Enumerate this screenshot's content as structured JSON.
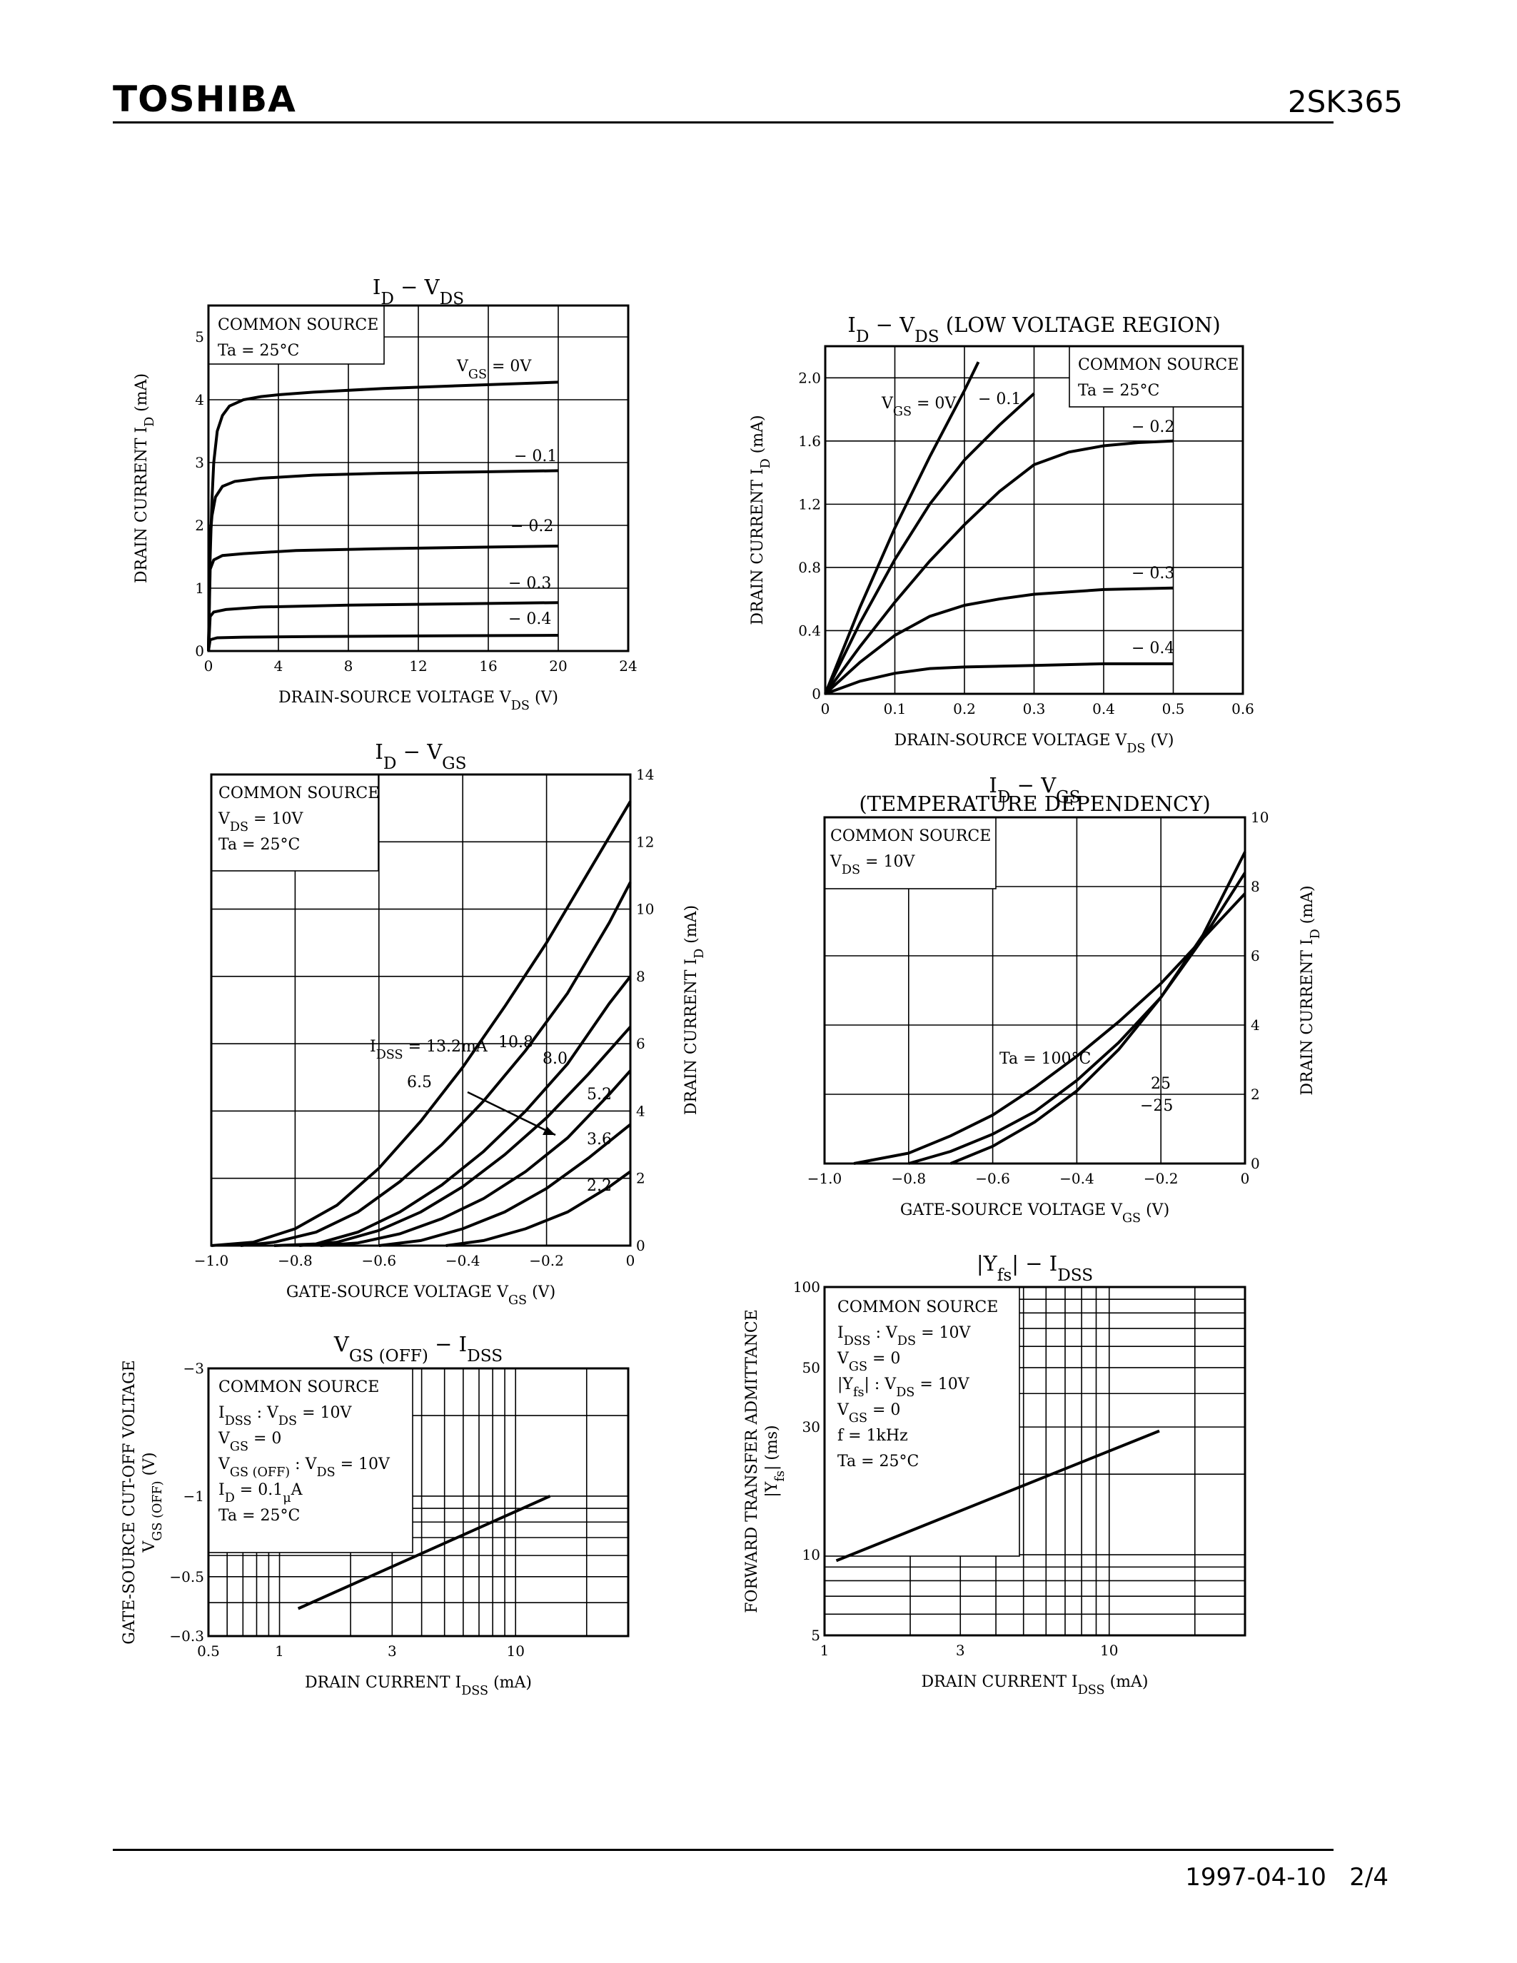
{
  "header": {
    "brand": "TOSHIBA",
    "part_number": "2SK365"
  },
  "footer": {
    "date": "1997-04-10",
    "page": "2/4"
  },
  "chart_data": [
    {
      "id": "id-vds",
      "type": "line",
      "title": [
        "I",
        "D",
        " − V",
        "DS"
      ],
      "xlabel": [
        "DRAIN-SOURCE VOLTAGE  V",
        "DS",
        "  (V)"
      ],
      "ylabel": [
        "DRAIN CURRENT  I",
        "D",
        "  (mA)"
      ],
      "xlim": [
        0,
        24
      ],
      "ylim": [
        0,
        5.5
      ],
      "xticks": [
        "0",
        "4",
        "8",
        "12",
        "16",
        "20",
        "24"
      ],
      "xtickvals": [
        0,
        4,
        8,
        12,
        16,
        20,
        24
      ],
      "yticks": [
        "0",
        "1",
        "2",
        "3",
        "4",
        "5"
      ],
      "ytickvals": [
        0,
        1,
        2,
        3,
        4,
        5
      ],
      "notes": [
        [
          "COMMON SOURCE"
        ],
        [
          "Ta = 25°C"
        ]
      ],
      "series": [
        {
          "name": "VGS=0V",
          "label": [
            "V",
            "GS",
            " = 0V"
          ],
          "x": [
            0,
            0.1,
            0.2,
            0.3,
            0.5,
            0.8,
            1.2,
            2,
            3,
            4,
            6,
            10,
            15,
            20
          ],
          "y": [
            0,
            1.5,
            2.4,
            3.0,
            3.5,
            3.75,
            3.9,
            4.0,
            4.05,
            4.08,
            4.12,
            4.18,
            4.23,
            4.28
          ]
        },
        {
          "name": "-0.1",
          "label": [
            "− 0.1"
          ],
          "x": [
            0,
            0.1,
            0.2,
            0.4,
            0.8,
            1.5,
            3,
            6,
            10,
            15,
            20
          ],
          "y": [
            0,
            1.8,
            2.15,
            2.45,
            2.62,
            2.7,
            2.75,
            2.8,
            2.83,
            2.85,
            2.87
          ]
        },
        {
          "name": "-0.2",
          "label": [
            "− 0.2"
          ],
          "x": [
            0,
            0.1,
            0.3,
            0.8,
            2,
            5,
            10,
            15,
            20
          ],
          "y": [
            0,
            1.3,
            1.45,
            1.52,
            1.55,
            1.6,
            1.63,
            1.65,
            1.67
          ]
        },
        {
          "name": "-0.3",
          "label": [
            "− 0.3"
          ],
          "x": [
            0,
            0.1,
            0.3,
            1,
            3,
            8,
            14,
            20
          ],
          "y": [
            0,
            0.55,
            0.62,
            0.66,
            0.7,
            0.73,
            0.75,
            0.77
          ]
        },
        {
          "name": "-0.4",
          "label": [
            "− 0.4"
          ],
          "x": [
            0,
            0.1,
            0.5,
            2,
            6,
            12,
            20
          ],
          "y": [
            0,
            0.18,
            0.21,
            0.22,
            0.23,
            0.24,
            0.25
          ]
        }
      ]
    },
    {
      "id": "id-vds-low",
      "type": "line",
      "title": [
        "I",
        "D",
        " − V",
        "DS",
        "   (LOW VOLTAGE REGION)"
      ],
      "xlabel": [
        "DRAIN-SOURCE VOLTAGE  V",
        "DS",
        "  (V)"
      ],
      "ylabel": [
        "DRAIN CURRENT  I",
        "D",
        "  (mA)"
      ],
      "xlim": [
        0,
        0.6
      ],
      "ylim": [
        0,
        2.2
      ],
      "xticks": [
        "0",
        "0.1",
        "0.2",
        "0.3",
        "0.4",
        "0.5",
        "0.6"
      ],
      "xtickvals": [
        0,
        0.1,
        0.2,
        0.3,
        0.4,
        0.5,
        0.6
      ],
      "yticks": [
        "0",
        "0.4",
        "0.8",
        "1.2",
        "1.6",
        "2.0"
      ],
      "ytickvals": [
        0,
        0.4,
        0.8,
        1.2,
        1.6,
        2.0
      ],
      "notes": [
        [
          "COMMON SOURCE"
        ],
        [
          "Ta = 25°C"
        ]
      ],
      "series": [
        {
          "name": "VGS=0V",
          "label": [
            "V",
            "GS",
            " = 0V"
          ],
          "x": [
            0,
            0.05,
            0.1,
            0.15,
            0.2,
            0.22
          ],
          "y": [
            0,
            0.55,
            1.05,
            1.5,
            1.92,
            2.1
          ]
        },
        {
          "name": "-0.1",
          "label": [
            "− 0.1"
          ],
          "x": [
            0,
            0.05,
            0.1,
            0.15,
            0.2,
            0.25,
            0.3
          ],
          "y": [
            0,
            0.45,
            0.85,
            1.2,
            1.48,
            1.7,
            1.9
          ]
        },
        {
          "name": "-0.2",
          "label": [
            "− 0.2"
          ],
          "x": [
            0,
            0.05,
            0.1,
            0.15,
            0.2,
            0.25,
            0.3,
            0.35,
            0.4,
            0.45,
            0.5
          ],
          "y": [
            0,
            0.3,
            0.58,
            0.84,
            1.07,
            1.28,
            1.45,
            1.53,
            1.57,
            1.59,
            1.6
          ]
        },
        {
          "name": "-0.3",
          "label": [
            "− 0.3"
          ],
          "x": [
            0,
            0.05,
            0.1,
            0.15,
            0.2,
            0.25,
            0.3,
            0.4,
            0.5
          ],
          "y": [
            0,
            0.2,
            0.37,
            0.49,
            0.56,
            0.6,
            0.63,
            0.66,
            0.67
          ]
        },
        {
          "name": "-0.4",
          "label": [
            "− 0.4"
          ],
          "x": [
            0,
            0.05,
            0.1,
            0.15,
            0.2,
            0.3,
            0.4,
            0.5
          ],
          "y": [
            0,
            0.08,
            0.13,
            0.16,
            0.17,
            0.18,
            0.19,
            0.19
          ]
        }
      ]
    },
    {
      "id": "id-vgs",
      "type": "line",
      "title": [
        "I",
        "D",
        " − V",
        "GS"
      ],
      "xlabel": [
        "GATE-SOURCE VOLTAGE  V",
        "GS",
        "  (V)"
      ],
      "ylabel": [
        "DRAIN CURRENT  I",
        "D",
        "  (mA)"
      ],
      "xlim": [
        -1.0,
        0
      ],
      "ylim": [
        0,
        14
      ],
      "xticks": [
        "−1.0",
        "−0.8",
        "−0.6",
        "−0.4",
        "−0.2",
        "0"
      ],
      "xtickvals": [
        -1.0,
        -0.8,
        -0.6,
        -0.4,
        -0.2,
        0
      ],
      "yticks": [
        "0",
        "2",
        "4",
        "6",
        "8",
        "10",
        "12",
        "14"
      ],
      "ytickvals": [
        0,
        2,
        4,
        6,
        8,
        10,
        12,
        14
      ],
      "notes": [
        [
          "COMMON SOURCE"
        ],
        [
          "V",
          "DS",
          " = 10V"
        ],
        [
          "Ta = 25°C"
        ]
      ],
      "annotation": [
        "I",
        "DSS",
        " = 13.2mA"
      ],
      "series": [
        {
          "name": "13.2",
          "label": [],
          "x": [
            -1.0,
            -0.9,
            -0.8,
            -0.7,
            -0.6,
            -0.5,
            -0.4,
            -0.3,
            -0.2,
            -0.1,
            0
          ],
          "y": [
            0,
            0.1,
            0.5,
            1.2,
            2.3,
            3.7,
            5.3,
            7.1,
            9.0,
            11.1,
            13.2
          ]
        },
        {
          "name": "10.8",
          "label": [
            "10.8"
          ],
          "x": [
            -0.93,
            -0.85,
            -0.75,
            -0.65,
            -0.55,
            -0.45,
            -0.35,
            -0.25,
            -0.15,
            -0.05,
            0
          ],
          "y": [
            0,
            0.1,
            0.4,
            1.0,
            1.9,
            3.0,
            4.3,
            5.8,
            7.5,
            9.6,
            10.8
          ]
        },
        {
          "name": "8.0",
          "label": [
            "8.0"
          ],
          "x": [
            -0.85,
            -0.75,
            -0.65,
            -0.55,
            -0.45,
            -0.35,
            -0.25,
            -0.15,
            -0.05,
            0
          ],
          "y": [
            0,
            0.05,
            0.4,
            1.0,
            1.8,
            2.8,
            4.0,
            5.4,
            7.2,
            8.0
          ]
        },
        {
          "name": "6.5",
          "label": [
            "6.5"
          ],
          "x": [
            -0.79,
            -0.7,
            -0.6,
            -0.5,
            -0.4,
            -0.3,
            -0.2,
            -0.1,
            0
          ],
          "y": [
            0,
            0.1,
            0.45,
            1.0,
            1.75,
            2.7,
            3.8,
            5.1,
            6.5
          ]
        },
        {
          "name": "5.2",
          "label": [
            "5.2"
          ],
          "x": [
            -0.74,
            -0.65,
            -0.55,
            -0.45,
            -0.35,
            -0.25,
            -0.15,
            -0.05,
            0
          ],
          "y": [
            0,
            0.08,
            0.35,
            0.8,
            1.4,
            2.2,
            3.2,
            4.5,
            5.2
          ]
        },
        {
          "name": "3.6",
          "label": [
            "3.6"
          ],
          "x": [
            -0.6,
            -0.5,
            -0.4,
            -0.3,
            -0.2,
            -0.1,
            0
          ],
          "y": [
            0,
            0.15,
            0.5,
            1.0,
            1.7,
            2.6,
            3.6
          ]
        },
        {
          "name": "2.2",
          "label": [
            "2.2"
          ],
          "x": [
            -0.44,
            -0.35,
            -0.25,
            -0.15,
            -0.05,
            0
          ],
          "y": [
            0,
            0.15,
            0.5,
            1.0,
            1.75,
            2.2
          ]
        }
      ]
    },
    {
      "id": "id-vgs-temp",
      "type": "line",
      "title": [
        "I",
        "D",
        " − V",
        "GS"
      ],
      "subtitle": "(TEMPERATURE DEPENDENCY)",
      "xlabel": [
        "GATE-SOURCE VOLTAGE  V",
        "GS",
        "  (V)"
      ],
      "ylabel": [
        "DRAIN CURRENT  I",
        "D",
        "  (mA)"
      ],
      "xlim": [
        -1.0,
        0
      ],
      "ylim": [
        0,
        10
      ],
      "xticks": [
        "−1.0",
        "−0.8",
        "−0.6",
        "−0.4",
        "−0.2",
        "0"
      ],
      "xtickvals": [
        -1.0,
        -0.8,
        -0.6,
        -0.4,
        -0.2,
        0
      ],
      "yticks": [
        "0",
        "2",
        "4",
        "6",
        "8",
        "10"
      ],
      "ytickvals": [
        0,
        2,
        4,
        6,
        8,
        10
      ],
      "notes": [
        [
          "COMMON SOURCE"
        ],
        [
          "V",
          "DS",
          " = 10V"
        ]
      ],
      "series": [
        {
          "name": "Ta=100°C",
          "label": [
            "Ta = 100°C"
          ],
          "x": [
            -0.93,
            -0.8,
            -0.7,
            -0.6,
            -0.5,
            -0.4,
            -0.3,
            -0.2,
            -0.1,
            0
          ],
          "y": [
            0,
            0.3,
            0.8,
            1.4,
            2.2,
            3.1,
            4.1,
            5.2,
            6.5,
            7.8
          ]
        },
        {
          "name": "25",
          "label": [
            "25"
          ],
          "x": [
            -0.8,
            -0.7,
            -0.6,
            -0.5,
            -0.4,
            -0.3,
            -0.2,
            -0.1,
            0
          ],
          "y": [
            0,
            0.35,
            0.85,
            1.5,
            2.4,
            3.5,
            4.8,
            6.5,
            8.4
          ]
        },
        {
          "name": "-25",
          "label": [
            "−25"
          ],
          "x": [
            -0.7,
            -0.6,
            -0.5,
            -0.4,
            -0.3,
            -0.2,
            -0.1,
            0
          ],
          "y": [
            0,
            0.5,
            1.2,
            2.1,
            3.3,
            4.8,
            6.6,
            9.0
          ]
        }
      ]
    },
    {
      "id": "vgsoff-idss",
      "type": "line",
      "title": [
        "V",
        "GS (OFF)",
        " − I",
        "DSS"
      ],
      "xlabel": [
        "DRAIN CURRENT  I",
        "DSS",
        "  (mA)"
      ],
      "ylabel": [
        "GATE-SOURCE CUT-OFF VOLTAGE"
      ],
      "ylabel2": [
        "V",
        "GS (OFF)",
        "  (V)"
      ],
      "xscale": "log",
      "yscale": "log",
      "xlim": [
        0.5,
        30
      ],
      "ylim": [
        -0.3,
        -3
      ],
      "xticks": [
        "0.5",
        "1",
        "3",
        "10"
      ],
      "xtickvals": [
        0.5,
        1,
        3,
        10
      ],
      "yticks": [
        "−0.3",
        "−0.5",
        "−1",
        "−3"
      ],
      "ytickvals": [
        -0.3,
        -0.5,
        -1,
        -3
      ],
      "notes": [
        [
          "COMMON SOURCE"
        ],
        [
          "I",
          "DSS",
          "      : V",
          "DS",
          " = 10V"
        ],
        [
          "                 V",
          "GS",
          " = 0"
        ],
        [
          "V",
          "GS (OFF)",
          " : V",
          "DS",
          " = 10V"
        ],
        [
          "                 I",
          "D",
          " = 0.1",
          "μ",
          "A"
        ],
        [
          "Ta = 25°C"
        ]
      ],
      "series": [
        {
          "name": "VGS(OFF)",
          "x": [
            1.2,
            14
          ],
          "y": [
            -0.38,
            -1.0
          ]
        }
      ]
    },
    {
      "id": "yfs-idss",
      "type": "line",
      "title": [
        "|Y",
        "fs",
        "| − I",
        "DSS"
      ],
      "xlabel": [
        "DRAIN CURRENT  I",
        "DSS",
        "  (mA)"
      ],
      "ylabel": [
        "FORWARD TRANSFER ADMITTANCE"
      ],
      "ylabel2": [
        "|Y",
        "fs",
        "|  (ms)"
      ],
      "xscale": "log",
      "yscale": "log",
      "xlim": [
        1,
        30
      ],
      "ylim": [
        5,
        100
      ],
      "xticks": [
        "1",
        "3",
        "10"
      ],
      "xtickvals": [
        1,
        3,
        10
      ],
      "yticks": [
        "5",
        "10",
        "30",
        "50",
        "100"
      ],
      "ytickvals": [
        5,
        10,
        30,
        50,
        100
      ],
      "notes": [
        [
          "COMMON SOURCE"
        ],
        [
          "I",
          "DSS",
          "   : V",
          "DS",
          " = 10V"
        ],
        [
          "           V",
          "GS",
          " = 0"
        ],
        [
          "|Y",
          "fs",
          "|   : V",
          "DS",
          " = 10V"
        ],
        [
          "           V",
          "GS",
          " = 0"
        ],
        [
          "           f = 1kHz"
        ],
        [
          "Ta = 25°C"
        ]
      ],
      "series": [
        {
          "name": "Yfs",
          "x": [
            1.1,
            15
          ],
          "y": [
            9.5,
            29
          ]
        }
      ]
    }
  ]
}
